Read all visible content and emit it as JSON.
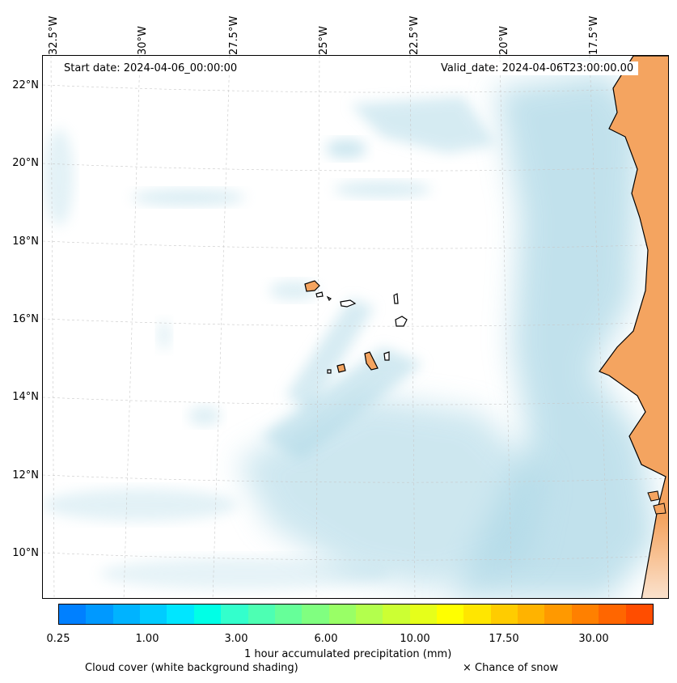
{
  "map": {
    "longitude_labels": [
      "32.5°W",
      "30°W",
      "27.5°W",
      "25°W",
      "22.5°W",
      "20°W",
      "17.5°W"
    ],
    "latitude_labels": [
      "22°N",
      "20°N",
      "18°N",
      "16°N",
      "14°N",
      "12°N",
      "10°N"
    ],
    "start_date": "Start date: 2024-04-06_00:00:00",
    "valid_date": "Valid_date: 2024-04-06T23:00:00.00"
  },
  "colors": {
    "land": "#f4a460",
    "cloud": "#add8e6",
    "coast": "#000000",
    "colorbar": [
      "#0080ff",
      "#0099ff",
      "#00b3ff",
      "#00ccff",
      "#00e6ff",
      "#00ffe6",
      "#33ffcc",
      "#4dffb3",
      "#66ff99",
      "#80ff80",
      "#99ff66",
      "#b3ff4d",
      "#ccff33",
      "#e6ff1a",
      "#ffff00",
      "#ffe600",
      "#ffcc00",
      "#ffb300",
      "#ff9900",
      "#ff8000",
      "#ff6600",
      "#ff4d00"
    ]
  },
  "colorbar": {
    "tick_labels": [
      "0.25",
      "1.00",
      "3.00",
      "6.00",
      "10.00",
      "17.50",
      "30.00"
    ],
    "label": "1 hour accumulated precipitation (mm)"
  },
  "legend": {
    "cloud_cover": "Cloud cover (white background shading)",
    "snow": "× Chance of snow"
  }
}
